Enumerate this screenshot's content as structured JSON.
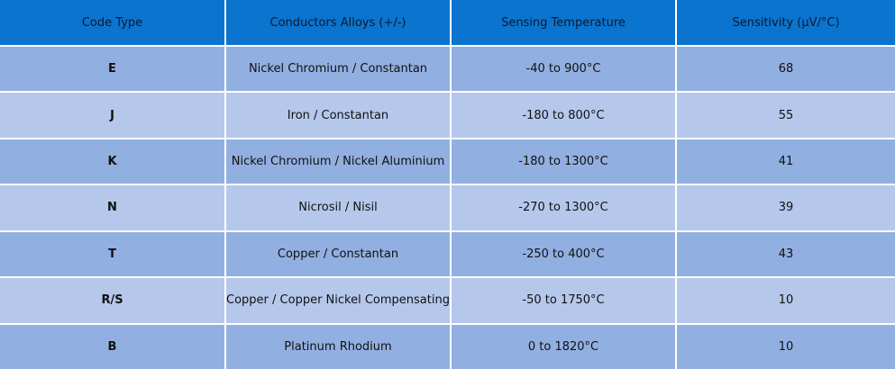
{
  "table": {
    "headers": [
      "Code Type",
      "Conductors Alloys (+/-)",
      "Sensing Temperature",
      "Sensitivity (µV/°C)"
    ],
    "rows": [
      [
        "E",
        "Nickel Chromium / Constantan",
        "-40 to 900°C",
        "68"
      ],
      [
        "J",
        "Iron / Constantan",
        "-180 to 800°C",
        "55"
      ],
      [
        "K",
        "Nickel Chromium / Nickel Aluminium",
        "-180 to 1300°C",
        "41"
      ],
      [
        "N",
        "Nicrosil / Nisil",
        "-270 to 1300°C",
        "39"
      ],
      [
        "T",
        "Copper / Constantan",
        "-250 to 400°C",
        "43"
      ],
      [
        "R/S",
        "Copper / Copper Nickel Compensating",
        "-50 to 1750°C",
        "10"
      ],
      [
        "B",
        "Platinum Rhodium",
        "0 to 1820°C",
        "10"
      ]
    ]
  },
  "colors": {
    "header_bg": "#0b74ce",
    "row_odd_bg": "#92afe1",
    "row_even_bg": "#b5c8ec"
  }
}
